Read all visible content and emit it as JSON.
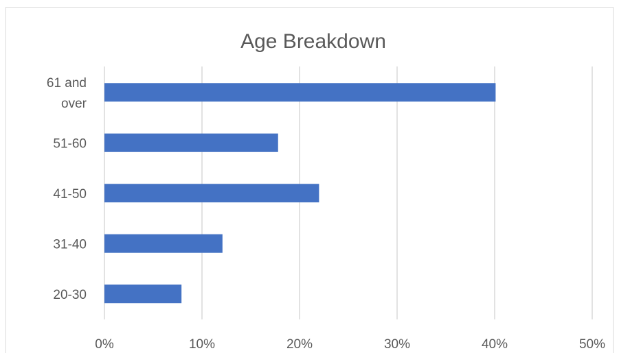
{
  "chart_data": {
    "type": "bar",
    "orientation": "horizontal",
    "title": "Age Breakdown",
    "categories": [
      "61 and over",
      "51-60",
      "41-50",
      "31-40",
      "20-30"
    ],
    "category_label_lines": [
      [
        "61 and",
        "over"
      ],
      [
        "51-60"
      ],
      [
        "41-50"
      ],
      [
        "31-40"
      ],
      [
        "20-30"
      ]
    ],
    "values": [
      40.1,
      17.8,
      22.0,
      12.1,
      7.9
    ],
    "xlim": [
      0,
      50
    ],
    "x_ticks": [
      "0%",
      "10%",
      "20%",
      "30%",
      "40%",
      "50%"
    ],
    "xlabel": "",
    "ylabel": "",
    "grid": true,
    "legend": "none",
    "bar_color": "#4472c4"
  }
}
